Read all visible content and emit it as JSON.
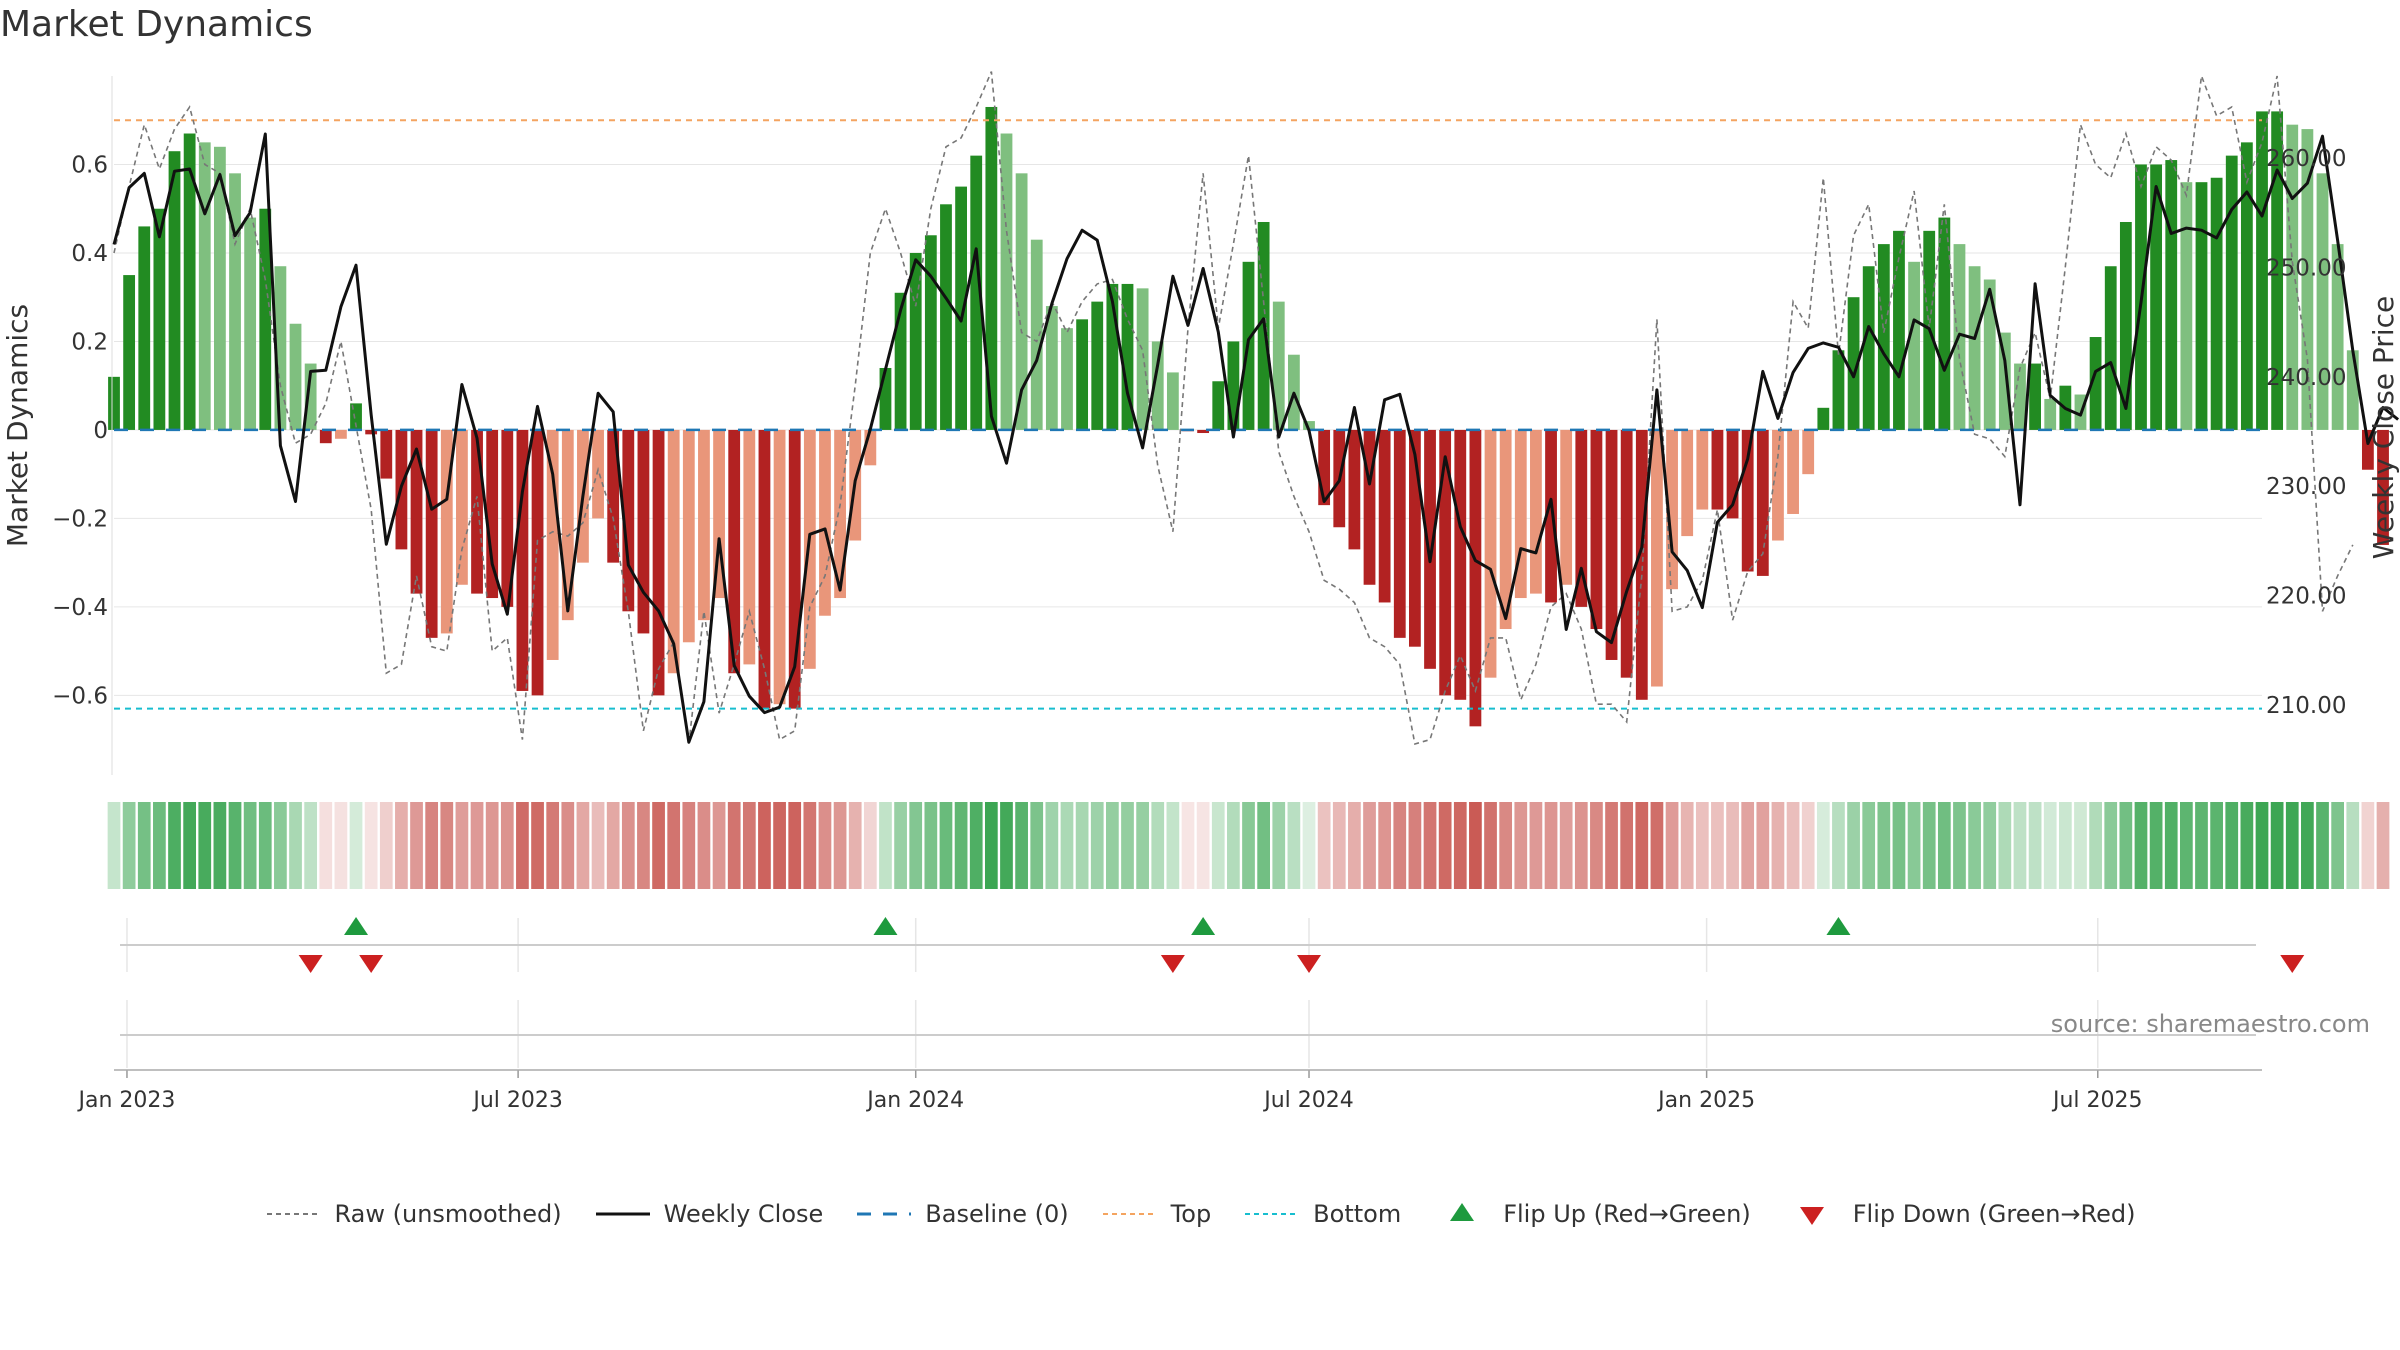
{
  "chart_data": {
    "type": "bar",
    "title": "Market Dynamics",
    "ylabel_left": "Market Dynamics",
    "ylabel_right": "Weekly Close Price",
    "ylim_left": [
      -0.78,
      0.8
    ],
    "yticks_left": [
      0.6,
      0.4,
      0.2,
      0,
      -0.2,
      -0.4,
      -0.6
    ],
    "ytick_labels_left": [
      "0.6",
      "0.4",
      "0.2",
      "0",
      "−0.2",
      "−0.4",
      "−0.6"
    ],
    "ylim_right": [
      203.6,
      267.5
    ],
    "yticks_right": [
      260,
      250,
      240,
      230,
      220,
      210
    ],
    "ytick_labels_right": [
      "260.00",
      "250.00",
      "240.00",
      "230.00",
      "220.00",
      "210.00"
    ],
    "x_start": "2022-12-26",
    "x_end": "2025-09-15",
    "xticks": [
      {
        "date": "2023-01-01",
        "label": "Jan 2023"
      },
      {
        "date": "2023-07-01",
        "label": "Jul 2023"
      },
      {
        "date": "2024-01-01",
        "label": "Jan 2024"
      },
      {
        "date": "2024-07-01",
        "label": "Jul 2024"
      },
      {
        "date": "2025-01-01",
        "label": "Jan 2025"
      },
      {
        "date": "2025-07-01",
        "label": "Jul 2025"
      }
    ],
    "top_level": 0.7,
    "bottom_level": -0.63,
    "dynamics": [
      0.12,
      0.35,
      0.46,
      0.5,
      0.63,
      0.67,
      0.65,
      0.64,
      0.58,
      0.48,
      0.5,
      0.37,
      0.24,
      0.15,
      -0.03,
      -0.02,
      0.06,
      -0.01,
      -0.11,
      -0.27,
      -0.37,
      -0.47,
      -0.46,
      -0.35,
      -0.37,
      -0.38,
      -0.4,
      -0.59,
      -0.6,
      -0.52,
      -0.43,
      -0.3,
      -0.2,
      -0.3,
      -0.41,
      -0.46,
      -0.6,
      -0.55,
      -0.48,
      -0.43,
      -0.38,
      -0.55,
      -0.53,
      -0.63,
      -0.62,
      -0.63,
      -0.54,
      -0.42,
      -0.38,
      -0.25,
      -0.08,
      0.14,
      0.31,
      0.4,
      0.44,
      0.51,
      0.55,
      0.62,
      0.73,
      0.67,
      0.58,
      0.43,
      0.28,
      0.23,
      0.25,
      0.29,
      0.33,
      0.33,
      0.32,
      0.2,
      0.13,
      -0.003,
      -0.007,
      0.11,
      0.2,
      0.38,
      0.47,
      0.29,
      0.17,
      0.02,
      -0.17,
      -0.22,
      -0.27,
      -0.35,
      -0.39,
      -0.47,
      -0.49,
      -0.54,
      -0.6,
      -0.61,
      -0.67,
      -0.56,
      -0.45,
      -0.38,
      -0.37,
      -0.39,
      -0.35,
      -0.4,
      -0.45,
      -0.52,
      -0.56,
      -0.61,
      -0.58,
      -0.36,
      -0.24,
      -0.18,
      -0.18,
      -0.2,
      -0.32,
      -0.33,
      -0.25,
      -0.19,
      -0.1,
      0.05,
      0.18,
      0.3,
      0.37,
      0.42,
      0.45,
      0.38,
      0.45,
      0.48,
      0.42,
      0.37,
      0.34,
      0.22,
      0.15,
      0.15,
      0.07,
      0.1,
      0.08,
      0.21,
      0.37,
      0.47,
      0.6,
      0.6,
      0.61,
      0.56,
      0.56,
      0.57,
      0.62,
      0.65,
      0.72,
      0.72,
      0.69,
      0.68,
      0.58,
      0.42,
      0.18,
      -0.09,
      -0.26
    ],
    "raw": [
      0.4,
      0.55,
      0.69,
      0.59,
      0.68,
      0.73,
      0.6,
      0.58,
      0.42,
      0.5,
      0.34,
      0.1,
      -0.03,
      -0.01,
      0.06,
      0.2,
      0.01,
      -0.18,
      -0.55,
      -0.53,
      -0.33,
      -0.49,
      -0.5,
      -0.27,
      -0.15,
      -0.5,
      -0.47,
      -0.7,
      -0.25,
      -0.23,
      -0.24,
      -0.21,
      -0.09,
      -0.2,
      -0.41,
      -0.68,
      -0.54,
      -0.48,
      -0.71,
      -0.41,
      -0.64,
      -0.53,
      -0.41,
      -0.54,
      -0.7,
      -0.68,
      -0.4,
      -0.33,
      -0.17,
      0.1,
      0.4,
      0.5,
      0.4,
      0.28,
      0.5,
      0.64,
      0.66,
      0.73,
      0.81,
      0.45,
      0.22,
      0.2,
      0.29,
      0.22,
      0.29,
      0.33,
      0.34,
      0.25,
      0.18,
      -0.08,
      -0.23,
      0.23,
      0.58,
      0.23,
      0.42,
      0.62,
      0.29,
      -0.05,
      -0.15,
      -0.23,
      -0.34,
      -0.36,
      -0.39,
      -0.47,
      -0.49,
      -0.53,
      -0.71,
      -0.7,
      -0.59,
      -0.51,
      -0.59,
      -0.47,
      -0.47,
      -0.61,
      -0.53,
      -0.4,
      -0.37,
      -0.45,
      -0.62,
      -0.62,
      -0.66,
      -0.33,
      0.25,
      -0.41,
      -0.4,
      -0.34,
      -0.18,
      -0.43,
      -0.32,
      -0.28,
      -0.06,
      0.29,
      0.23,
      0.57,
      0.17,
      0.44,
      0.51,
      0.22,
      0.39,
      0.54,
      0.23,
      0.51,
      0.16,
      -0.01,
      -0.02,
      -0.06,
      0.14,
      0.22,
      0.07,
      0.37,
      0.69,
      0.6,
      0.57,
      0.67,
      0.55,
      0.64,
      0.61,
      0.53,
      0.8,
      0.71,
      0.73,
      0.56,
      0.65,
      0.8,
      0.38,
      0.16,
      -0.41,
      -0.33,
      -0.26
    ],
    "weekly_close": [
      252.1,
      257.3,
      258.6,
      252.8,
      258.8,
      259,
      254.9,
      258.5,
      252.9,
      255,
      262.2,
      233.7,
      228.6,
      240.5,
      240.6,
      246.4,
      250.2,
      236.5,
      224.7,
      230,
      233.4,
      227.9,
      228.8,
      239.3,
      234.4,
      222.9,
      218.3,
      229.5,
      237.3,
      231.1,
      218.6,
      229.1,
      238.5,
      236.8,
      222.8,
      220.3,
      218.6,
      215.6,
      206.6,
      210.3,
      225.2,
      213.6,
      210.8,
      209.3,
      209.8,
      213.5,
      225.6,
      226.1,
      220.5,
      230.5,
      235.2,
      240.7,
      246.1,
      250.7,
      249.2,
      247.2,
      245.1,
      251.7,
      236.4,
      232.1,
      238.8,
      241.5,
      246.7,
      250.8,
      253.4,
      252.5,
      246.9,
      238.5,
      233.5,
      241.1,
      249.2,
      244.7,
      249.9,
      244.1,
      234.5,
      243.4,
      245.3,
      234.5,
      238.5,
      235.1,
      228.6,
      230.5,
      237.2,
      230.2,
      237.9,
      238.4,
      232.9,
      223.1,
      232.7,
      226.3,
      223.2,
      222.4,
      217.9,
      224.3,
      223.9,
      228.8,
      216.9,
      222.5,
      216.7,
      215.7,
      220.4,
      224.4,
      238.8,
      224,
      222.3,
      218.9,
      226.7,
      228.3,
      232.5,
      240.5,
      236.2,
      240.4,
      242.6,
      243.1,
      242.7,
      240,
      244.6,
      242.1,
      240,
      245.2,
      244.4,
      240.6,
      243.9,
      243.5,
      248,
      241.5,
      228.3,
      248.5,
      238.3,
      237.1,
      236.5,
      240.5,
      241.3,
      237.1,
      246.8,
      257.4,
      253.1,
      253.6,
      253.4,
      252.7,
      255.3,
      256.9,
      254.7,
      258.9,
      256.3,
      257.7,
      262,
      252.5,
      242.4,
      233.9,
      237.2,
      236.1
    ],
    "flip_up_weeks": [
      16,
      51,
      72,
      114
    ],
    "flip_down_weeks": [
      13,
      17,
      70,
      79,
      144
    ],
    "legend": [
      {
        "key": "raw",
        "label": "Raw (unsmoothed)"
      },
      {
        "key": "close",
        "label": "Weekly Close"
      },
      {
        "key": "baseline",
        "label": "Baseline (0)"
      },
      {
        "key": "top",
        "label": "Top"
      },
      {
        "key": "bottom",
        "label": "Bottom"
      },
      {
        "key": "flip-up",
        "label": "Flip Up (Red→Green)"
      },
      {
        "key": "flip-down",
        "label": "Flip Down (Green→Red)"
      }
    ],
    "source": "source: sharemaestro.com",
    "colors": {
      "strong_green": "#228B22",
      "light_green": "#7FBF7F",
      "strong_red": "#B22222",
      "light_red": "#E9967A",
      "close_line": "#111111",
      "raw_line": "#777777",
      "baseline": "#1F77B4",
      "top": "#F4A460",
      "bottom": "#17BECF",
      "flip_up": "#1E9A3E",
      "flip_down": "#CC2020",
      "strip_green": "#3CA653",
      "strip_red": "#C8554F",
      "grid": "#E6E6E6"
    },
    "grid": true,
    "legend_position": "bottom"
  }
}
